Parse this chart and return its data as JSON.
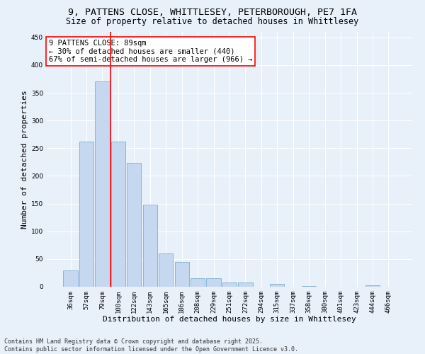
{
  "title_line1": "9, PATTENS CLOSE, WHITTLESEY, PETERBOROUGH, PE7 1FA",
  "title_line2": "Size of property relative to detached houses in Whittlesey",
  "xlabel": "Distribution of detached houses by size in Whittlesey",
  "ylabel": "Number of detached properties",
  "categories": [
    "36sqm",
    "57sqm",
    "79sqm",
    "100sqm",
    "122sqm",
    "143sqm",
    "165sqm",
    "186sqm",
    "208sqm",
    "229sqm",
    "251sqm",
    "272sqm",
    "294sqm",
    "315sqm",
    "337sqm",
    "358sqm",
    "380sqm",
    "401sqm",
    "423sqm",
    "444sqm",
    "466sqm"
  ],
  "values": [
    30,
    262,
    370,
    262,
    224,
    148,
    60,
    45,
    15,
    15,
    8,
    8,
    0,
    5,
    0,
    1,
    0,
    0,
    0,
    2,
    0
  ],
  "bar_color": "#c5d8f0",
  "bar_edge_color": "#7bafd4",
  "vline_x": 2.5,
  "vline_color": "red",
  "annotation_text": "9 PATTENS CLOSE: 89sqm\n← 30% of detached houses are smaller (440)\n67% of semi-detached houses are larger (966) →",
  "annotation_box_color": "red",
  "annotation_facecolor": "white",
  "ylim": [
    0,
    460
  ],
  "yticks": [
    0,
    50,
    100,
    150,
    200,
    250,
    300,
    350,
    400,
    450
  ],
  "background_color": "#e8f0fa",
  "grid_color": "white",
  "footer_line1": "Contains HM Land Registry data © Crown copyright and database right 2025.",
  "footer_line2": "Contains public sector information licensed under the Open Government Licence v3.0.",
  "title_fontsize": 9.5,
  "subtitle_fontsize": 8.5,
  "axis_label_fontsize": 8,
  "tick_fontsize": 6.5,
  "annotation_fontsize": 7.5,
  "footer_fontsize": 6
}
